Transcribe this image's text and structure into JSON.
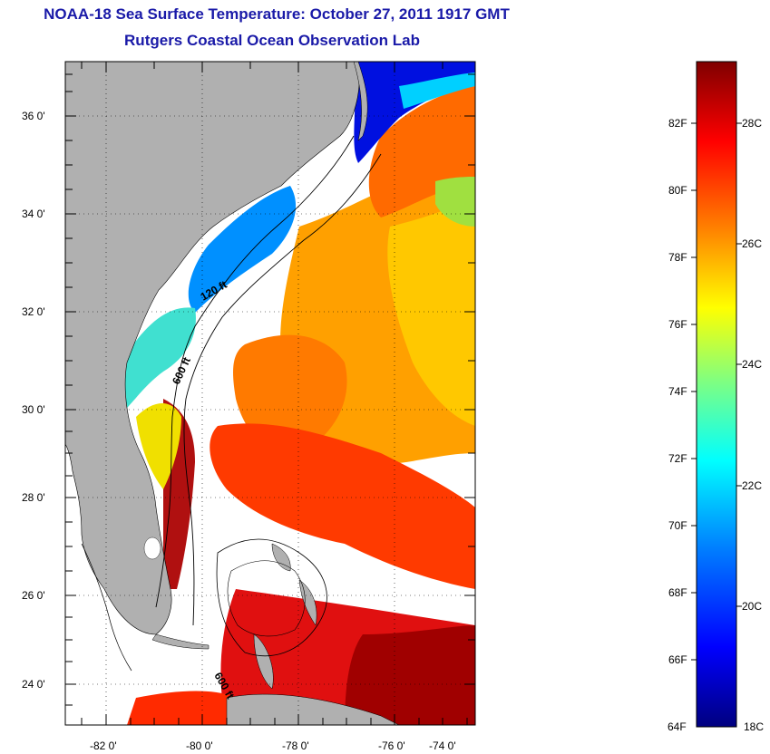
{
  "header": {
    "title": "NOAA-18 Sea Surface Temperature:  October 27, 2011 1917 GMT",
    "subtitle": "Rutgers Coastal Ocean Observation Lab"
  },
  "map": {
    "lat_ticks": [
      "24 0'",
      "26 0'",
      "28 0'",
      "30 0'",
      "32 0'",
      "34 0'",
      "36 0'"
    ],
    "lon_ticks": [
      "-82 0'",
      "-80 0'",
      "-78 0'",
      "-76 0'",
      "-74 0'"
    ],
    "contours": [
      "120 ft",
      "600 ft",
      "600 ft"
    ],
    "colors": {
      "land": "#b0b0b0",
      "cloud": "#ffffff"
    }
  },
  "colorbar": {
    "f_labels": [
      "82F",
      "80F",
      "78F",
      "76F",
      "74F",
      "72F",
      "70F",
      "68F",
      "66F",
      "64F"
    ],
    "c_labels": [
      "28C",
      "26C",
      "24C",
      "22C",
      "20C",
      "18C"
    ],
    "colors": [
      "#00007f",
      "#0000ff",
      "#0080ff",
      "#00ffff",
      "#80ff80",
      "#ffff00",
      "#ff8000",
      "#ff0000",
      "#7f0000"
    ]
  }
}
